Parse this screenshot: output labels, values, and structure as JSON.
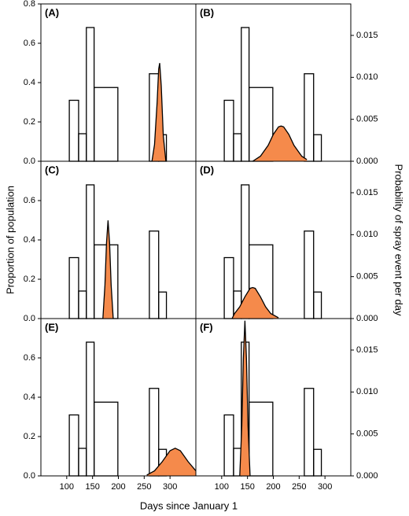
{
  "axes": {
    "xlabel": "Days since January 1",
    "ylabel": "Proportion of population",
    "y2label": "Probability of spray event per day",
    "xlim": [
      50,
      350
    ],
    "xticks": [
      100,
      150,
      200,
      250,
      300
    ],
    "ylim": [
      0,
      0.8
    ],
    "yticks": [
      {
        "value": 0,
        "label": "0.0"
      },
      0.2,
      0.4,
      0.6,
      0.8
    ],
    "y2lim": [
      0,
      0.01875
    ],
    "y2ticks": [
      {
        "value": 0,
        "label": "0.000"
      },
      0.005,
      {
        "value": 0.01,
        "label": "0.010"
      },
      0.015
    ]
  },
  "chart_data": [
    {
      "type": "histogram",
      "label": "(A)",
      "bins": [
        105,
        123,
        138,
        153,
        199,
        260,
        278,
        293
      ],
      "values": [
        0.31,
        0.14,
        0.68,
        0.375,
        0,
        0.445,
        0.135
      ],
      "series": [
        {
          "color": "#f58a4b",
          "axis": "y2",
          "x": [
            265,
            270,
            275,
            278,
            280,
            283,
            287,
            292
          ],
          "values": [
            0,
            0.002,
            0.007,
            0.011,
            0.0117,
            0.009,
            0.003,
            0
          ]
        }
      ]
    },
    {
      "type": "histogram",
      "label": "(B)",
      "bins": [
        105,
        123,
        138,
        153,
        199,
        260,
        278,
        293
      ],
      "values": [
        0.31,
        0.14,
        0.68,
        0.375,
        0,
        0.445,
        0.135
      ],
      "series": [
        {
          "color": "#f58a4b",
          "axis": "y2",
          "x": [
            160,
            175,
            190,
            200,
            210,
            215,
            220,
            230,
            240,
            255,
            265
          ],
          "values": [
            0,
            0.0006,
            0.0019,
            0.0032,
            0.0041,
            0.0042,
            0.0041,
            0.0032,
            0.0019,
            0.0006,
            0.0002
          ]
        }
      ]
    },
    {
      "type": "histogram",
      "label": "(C)",
      "bins": [
        105,
        123,
        138,
        153,
        199,
        260,
        278,
        293
      ],
      "values": [
        0.31,
        0.14,
        0.68,
        0.375,
        0,
        0.445,
        0.135
      ],
      "series": [
        {
          "color": "#f58a4b",
          "axis": "y2",
          "x": [
            170,
            174,
            177,
            180,
            183,
            186,
            190
          ],
          "values": [
            0,
            0.004,
            0.009,
            0.0117,
            0.009,
            0.004,
            0
          ]
        }
      ]
    },
    {
      "type": "histogram",
      "label": "(D)",
      "bins": [
        105,
        123,
        138,
        153,
        199,
        260,
        278,
        293
      ],
      "values": [
        0.31,
        0.14,
        0.68,
        0.375,
        0,
        0.445,
        0.135
      ],
      "series": [
        {
          "color": "#f58a4b",
          "axis": "y2",
          "x": [
            120,
            125,
            135,
            145,
            155,
            160,
            165,
            175,
            185,
            195,
            210
          ],
          "values": [
            0,
            0.0006,
            0.0014,
            0.0026,
            0.0036,
            0.0037,
            0.0036,
            0.0026,
            0.0014,
            0.0006,
            0.0001
          ]
        }
      ]
    },
    {
      "type": "histogram",
      "label": "(E)",
      "bins": [
        105,
        123,
        138,
        153,
        199,
        260,
        278,
        293
      ],
      "values": [
        0.31,
        0.14,
        0.68,
        0.375,
        0,
        0.445,
        0.135
      ],
      "series": [
        {
          "color": "#f58a4b",
          "axis": "y2",
          "x": [
            255,
            270,
            285,
            300,
            310,
            320,
            335,
            350
          ],
          "values": [
            0.0001,
            0.0006,
            0.0017,
            0.003,
            0.0033,
            0.003,
            0.0017,
            0.0006
          ]
        }
      ]
    },
    {
      "type": "histogram",
      "label": "(F)",
      "bins": [
        105,
        123,
        138,
        153,
        199,
        260,
        278,
        293
      ],
      "values": [
        0.31,
        0.14,
        0.68,
        0.375,
        0,
        0.445,
        0.135
      ],
      "series": [
        {
          "color": "#f58a4b",
          "axis": "y2",
          "x": [
            135,
            139,
            142,
            145,
            148,
            151,
            155
          ],
          "values": [
            0,
            0.006,
            0.014,
            0.0185,
            0.014,
            0.006,
            0
          ]
        }
      ]
    }
  ]
}
